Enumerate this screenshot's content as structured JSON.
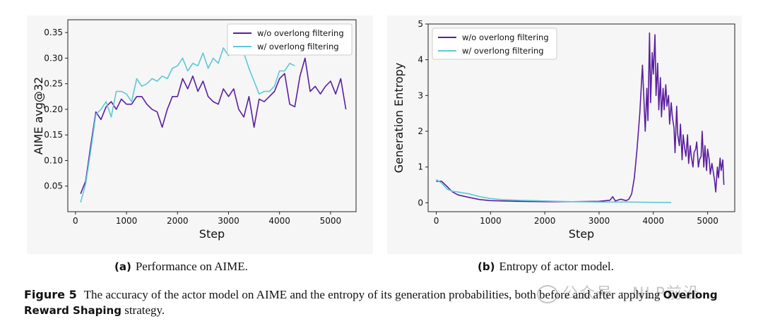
{
  "chart_data": [
    {
      "type": "line",
      "id": "a",
      "ylabel": "AIME avg@32",
      "xlabel": "Step",
      "xlim": [
        -150,
        5500
      ],
      "ylim": [
        0.0,
        0.375
      ],
      "xticks": [
        0,
        1000,
        2000,
        3000,
        4000,
        5000
      ],
      "yticks": [
        0.05,
        0.1,
        0.15,
        0.2,
        0.25,
        0.3,
        0.35
      ],
      "ytick_labels": [
        "0.05",
        "0.10",
        "0.15",
        "0.20",
        "0.25",
        "0.30",
        "0.35"
      ],
      "legend_position": "top-right",
      "series": [
        {
          "name": "w/o overlong filtering",
          "color": "#5b1ea0",
          "x": [
            100,
            200,
            300,
            400,
            500,
            600,
            700,
            800,
            900,
            1000,
            1100,
            1200,
            1300,
            1400,
            1500,
            1600,
            1700,
            1800,
            1900,
            2000,
            2100,
            2200,
            2300,
            2400,
            2500,
            2600,
            2700,
            2800,
            2900,
            3000,
            3100,
            3200,
            3300,
            3400,
            3500,
            3600,
            3700,
            3800,
            3900,
            4000,
            4100,
            4200,
            4300,
            4400,
            4500,
            4600,
            4700,
            4800,
            4900,
            5000,
            5100,
            5200,
            5300
          ],
          "y": [
            0.035,
            0.06,
            0.13,
            0.195,
            0.18,
            0.205,
            0.215,
            0.2,
            0.22,
            0.21,
            0.21,
            0.225,
            0.225,
            0.21,
            0.2,
            0.195,
            0.165,
            0.2,
            0.225,
            0.225,
            0.26,
            0.24,
            0.265,
            0.235,
            0.255,
            0.225,
            0.215,
            0.21,
            0.24,
            0.225,
            0.24,
            0.2,
            0.185,
            0.225,
            0.165,
            0.22,
            0.215,
            0.225,
            0.235,
            0.26,
            0.27,
            0.21,
            0.205,
            0.265,
            0.3,
            0.235,
            0.245,
            0.23,
            0.245,
            0.255,
            0.23,
            0.26,
            0.2
          ]
        },
        {
          "name": "w/ overlong filtering",
          "color": "#5ec8d6",
          "x": [
            100,
            200,
            300,
            400,
            500,
            600,
            700,
            800,
            900,
            1000,
            1100,
            1200,
            1300,
            1400,
            1500,
            1600,
            1700,
            1800,
            1900,
            2000,
            2100,
            2200,
            2300,
            2400,
            2500,
            2600,
            2700,
            2800,
            2900,
            3000,
            3100,
            3200,
            3300,
            3400,
            3500,
            3600,
            3700,
            3800,
            3900,
            4000,
            4100,
            4200,
            4300
          ],
          "y": [
            0.018,
            0.055,
            0.12,
            0.19,
            0.2,
            0.215,
            0.185,
            0.235,
            0.235,
            0.23,
            0.215,
            0.26,
            0.245,
            0.25,
            0.26,
            0.255,
            0.265,
            0.26,
            0.28,
            0.285,
            0.3,
            0.275,
            0.29,
            0.285,
            0.31,
            0.28,
            0.3,
            0.29,
            0.32,
            0.305,
            0.36,
            0.315,
            0.31,
            0.28,
            0.255,
            0.23,
            0.235,
            0.235,
            0.245,
            0.275,
            0.275,
            0.29,
            0.285
          ]
        }
      ]
    },
    {
      "type": "line",
      "id": "b",
      "ylabel": "Generation Entropy",
      "xlabel": "Step",
      "xlim": [
        -150,
        5500
      ],
      "ylim": [
        -0.25,
        5.0
      ],
      "xticks": [
        0,
        1000,
        2000,
        3000,
        4000,
        5000
      ],
      "yticks": [
        0,
        1,
        2,
        3,
        4,
        5
      ],
      "ytick_labels": [
        "0",
        "1",
        "2",
        "3",
        "4",
        "5"
      ],
      "legend_position": "top-left",
      "series": [
        {
          "name": "w/o overlong filtering",
          "color": "#5b1ea0",
          "x": [
            0,
            100,
            200,
            300,
            400,
            600,
            800,
            1000,
            1500,
            2000,
            2500,
            3000,
            3200,
            3250,
            3300,
            3400,
            3500,
            3550,
            3600,
            3650,
            3700,
            3750,
            3800,
            3850,
            3880,
            3900,
            3930,
            3950,
            3980,
            4000,
            4030,
            4050,
            4080,
            4100,
            4130,
            4150,
            4180,
            4200,
            4230,
            4250,
            4280,
            4300,
            4330,
            4350,
            4380,
            4400,
            4430,
            4450,
            4480,
            4500,
            4530,
            4550,
            4580,
            4600,
            4630,
            4650,
            4680,
            4700,
            4730,
            4750,
            4780,
            4800,
            4830,
            4850,
            4880,
            4900,
            4930,
            4950,
            4980,
            5000,
            5030,
            5050,
            5080,
            5100,
            5130,
            5150,
            5180,
            5200,
            5230,
            5250,
            5280,
            5300
          ],
          "y": [
            0.6,
            0.6,
            0.45,
            0.3,
            0.22,
            0.15,
            0.09,
            0.06,
            0.04,
            0.03,
            0.03,
            0.04,
            0.07,
            0.17,
            0.05,
            0.1,
            0.06,
            0.1,
            0.25,
            0.7,
            1.5,
            2.5,
            3.85,
            2.0,
            3.2,
            2.3,
            4.75,
            2.8,
            4.2,
            3.6,
            4.7,
            3.0,
            3.9,
            2.6,
            3.5,
            2.4,
            3.2,
            2.6,
            3.3,
            2.7,
            3.0,
            2.2,
            2.8,
            2.4,
            2.1,
            1.4,
            2.7,
            1.9,
            1.6,
            2.2,
            1.2,
            1.9,
            1.5,
            1.3,
            1.9,
            1.1,
            1.6,
            1.3,
            1.0,
            1.4,
            1.5,
            1.7,
            1.0,
            1.2,
            1.3,
            2.0,
            1.0,
            1.6,
            0.9,
            1.5,
            1.2,
            0.8,
            1.1,
            0.9,
            0.6,
            0.3,
            1.0,
            0.7,
            1.25,
            0.9,
            1.2,
            0.5
          ]
        },
        {
          "name": "w/ overlong filtering",
          "color": "#5ec8d6",
          "x": [
            0,
            100,
            200,
            300,
            400,
            600,
            800,
            1000,
            1200,
            1500,
            2000,
            2500,
            3000,
            3500,
            4000,
            4330
          ],
          "y": [
            0.65,
            0.55,
            0.38,
            0.32,
            0.3,
            0.25,
            0.17,
            0.12,
            0.09,
            0.07,
            0.05,
            0.03,
            0.02,
            0.02,
            0.01,
            0.01
          ]
        }
      ]
    }
  ],
  "subcaptions": {
    "a_label": "(a)",
    "a_text": "Performance on AIME.",
    "b_label": "(b)",
    "b_text": "Entropy of actor model."
  },
  "caption": {
    "label": "Figure 5",
    "text_before": "The accuracy of the actor model on AIME and the entropy of its generation probabilities, both before and after applying",
    "strong": "Overlong Reward Shaping",
    "text_after": "strategy."
  },
  "watermark": {
    "text": "公众号 · NLP前沿"
  }
}
